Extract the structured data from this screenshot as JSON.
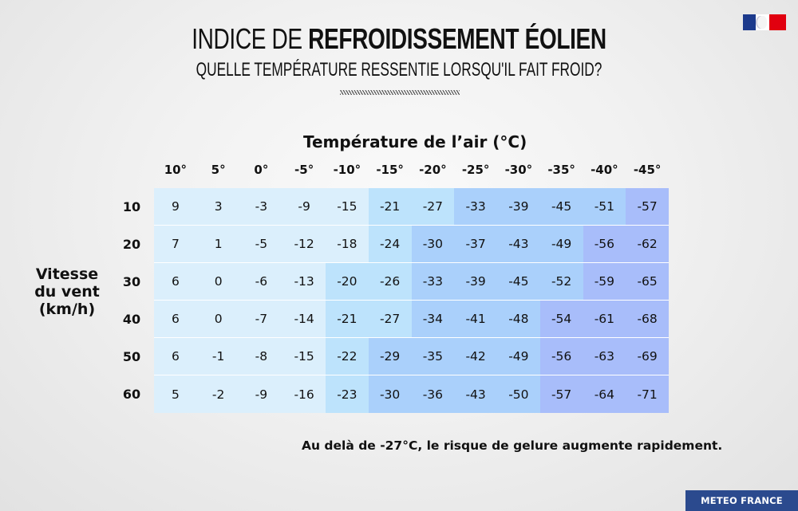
{
  "header": {
    "title_light": "INDICE DE ",
    "title_bold": "REFROIDISSEMENT ÉOLIEN",
    "subtitle": "QUELLE TEMPÉRATURE RESSENTIE LORSQU'IL FAIT FROID?",
    "logo": "republique-francaise-marianne-logo"
  },
  "colors": {
    "band_0": "#dbeffc",
    "band_1": "#bde3fc",
    "band_2": "#aad0fb",
    "band_3": "#a8bdfa",
    "brand": "#2b4a8e"
  },
  "chart_data": {
    "type": "heatmap",
    "title": "INDICE DE REFROIDISSEMENT ÉOLIEN",
    "subtitle": "QUELLE TEMPÉRATURE RESSENTIE LORSQU'IL FAIT FROID?",
    "xlabel": "Température de l’air (°C)",
    "ylabel": "Vitesse du vent (km/h)",
    "x": [
      "10°",
      "5°",
      "0°",
      "-5°",
      "-10°",
      "-15°",
      "-20°",
      "-25°",
      "-30°",
      "-35°",
      "-40°",
      "-45°"
    ],
    "y": [
      "10",
      "20",
      "30",
      "40",
      "50",
      "60"
    ],
    "values": [
      [
        9,
        3,
        -3,
        -9,
        -15,
        -21,
        -27,
        -33,
        -39,
        -45,
        -51,
        -57
      ],
      [
        7,
        1,
        -5,
        -12,
        -18,
        -24,
        -30,
        -37,
        -43,
        -49,
        -56,
        -62
      ],
      [
        6,
        0,
        -6,
        -13,
        -20,
        -26,
        -33,
        -39,
        -45,
        -52,
        -59,
        -65
      ],
      [
        6,
        0,
        -7,
        -14,
        -21,
        -27,
        -34,
        -41,
        -48,
        -54,
        -61,
        -68
      ],
      [
        6,
        -1,
        -8,
        -15,
        -22,
        -29,
        -35,
        -42,
        -49,
        -56,
        -63,
        -69
      ],
      [
        5,
        -2,
        -9,
        -16,
        -23,
        -30,
        -36,
        -43,
        -50,
        -57,
        -64,
        -71
      ]
    ],
    "color_bands": [
      [
        0,
        0,
        0,
        0,
        0,
        1,
        1,
        2,
        2,
        2,
        2,
        3
      ],
      [
        0,
        0,
        0,
        0,
        0,
        1,
        2,
        2,
        2,
        2,
        3,
        3
      ],
      [
        0,
        0,
        0,
        0,
        1,
        1,
        2,
        2,
        2,
        2,
        3,
        3
      ],
      [
        0,
        0,
        0,
        0,
        1,
        1,
        2,
        2,
        2,
        3,
        3,
        3
      ],
      [
        0,
        0,
        0,
        0,
        1,
        2,
        2,
        2,
        2,
        3,
        3,
        3
      ],
      [
        0,
        0,
        0,
        0,
        1,
        2,
        2,
        2,
        2,
        3,
        3,
        3
      ]
    ],
    "annotation": "Au delà de -27°C, le risque de gelure augmente rapidement."
  },
  "footer": {
    "note": "Au delà de -27°C, le risque de gelure augmente rapidement.",
    "brand": "METEO FRANCE"
  }
}
